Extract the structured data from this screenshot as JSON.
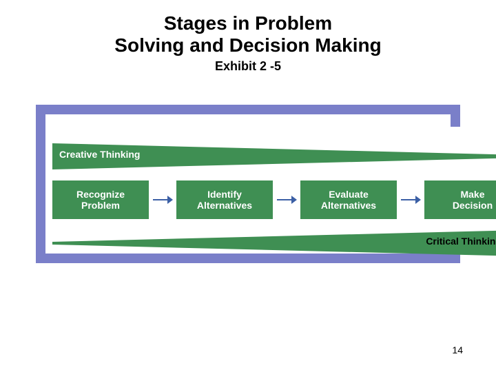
{
  "title": {
    "line1": "Stages in Problem",
    "line2": "Solving and Decision Making",
    "subtitle": "Exhibit 2 -5"
  },
  "colors": {
    "frame": "#7a7fc9",
    "panel_bg": "#ffffff",
    "wedge_fill": "#3f8f53",
    "stage_fill": "#3f8f53",
    "arrow": "#3b5fa5",
    "title_text": "#000000",
    "wedge_top_text": "#ffffff",
    "wedge_bottom_text": "#000000",
    "stage_text": "#ffffff"
  },
  "layout": {
    "frame_border_width": 14,
    "stage_box_width": 140,
    "stage_box_height": 56,
    "stage_fontsize": 14,
    "wedge_label_fontsize": 14,
    "title_fontsize": 28,
    "subtitle_fontsize": 18
  },
  "diagram": {
    "type": "flowchart",
    "top_wedge_label": "Creative Thinking",
    "bottom_wedge_label": "Critical Thinking",
    "stages": [
      {
        "line1": "Recognize",
        "line2": "Problem"
      },
      {
        "line1": "Identify",
        "line2": "Alternatives"
      },
      {
        "line1": "Evaluate",
        "line2": "Alternatives"
      },
      {
        "line1": "Make",
        "line2": "Decision"
      }
    ]
  },
  "page_number": "14"
}
